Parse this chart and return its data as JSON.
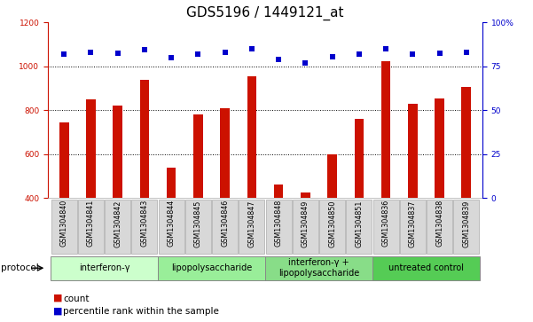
{
  "title": "GDS5196 / 1449121_at",
  "samples": [
    "GSM1304840",
    "GSM1304841",
    "GSM1304842",
    "GSM1304843",
    "GSM1304844",
    "GSM1304845",
    "GSM1304846",
    "GSM1304847",
    "GSM1304848",
    "GSM1304849",
    "GSM1304850",
    "GSM1304851",
    "GSM1304836",
    "GSM1304837",
    "GSM1304838",
    "GSM1304839"
  ],
  "counts": [
    745,
    850,
    820,
    940,
    540,
    780,
    810,
    955,
    460,
    425,
    600,
    760,
    1025,
    830,
    855,
    905
  ],
  "percentile_ranks": [
    1058,
    1065,
    1060,
    1075,
    1038,
    1058,
    1065,
    1080,
    1030,
    1015,
    1044,
    1058,
    1080,
    1055,
    1060,
    1063
  ],
  "groups": [
    {
      "label": "interferon-γ",
      "start": 0,
      "end": 4,
      "color": "#ccffcc"
    },
    {
      "label": "lipopolysaccharide",
      "start": 4,
      "end": 8,
      "color": "#99ee99"
    },
    {
      "label": "interferon-γ +\nlipopolysaccharide",
      "start": 8,
      "end": 12,
      "color": "#88dd88"
    },
    {
      "label": "untreated control",
      "start": 12,
      "end": 16,
      "color": "#55cc55"
    }
  ],
  "bar_color": "#cc1100",
  "dot_color": "#0000cc",
  "left_ylim": [
    400,
    1200
  ],
  "left_yticks": [
    400,
    600,
    800,
    1000,
    1200
  ],
  "right_ylim": [
    0,
    100
  ],
  "right_yticks": [
    0,
    25,
    50,
    75,
    100
  ],
  "right_yticklabels": [
    "0",
    "25",
    "50",
    "75",
    "100%"
  ],
  "grid_values": [
    600,
    800,
    1000
  ],
  "title_fontsize": 11,
  "tick_fontsize": 6.5,
  "label_fontsize": 8,
  "protocol_label": "protocol",
  "legend_count_label": "count",
  "legend_percentile_label": "percentile rank within the sample",
  "background_color": "#ffffff",
  "plot_bg_color": "#ffffff",
  "bar_width": 0.35
}
